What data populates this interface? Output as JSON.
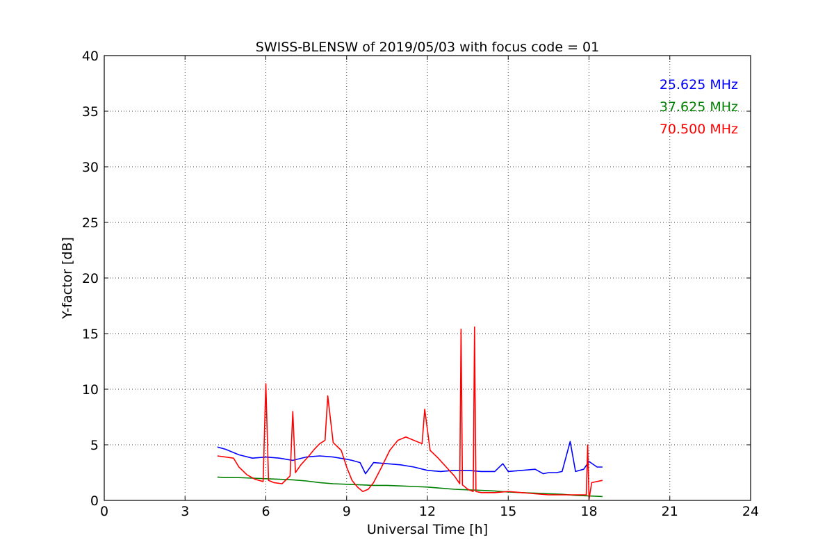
{
  "chart_data": {
    "type": "line",
    "title": "SWISS-BLENSW of 2019/05/03 with focus code = 01",
    "xlabel": "Universal Time [h]",
    "ylabel": "Y-factor [dB]",
    "xlim": [
      0,
      24
    ],
    "ylim": [
      0,
      40
    ],
    "xticks": [
      0,
      3,
      6,
      9,
      12,
      15,
      18,
      21,
      24
    ],
    "xtick_labels": [
      "0",
      "3",
      "6",
      "9",
      "12",
      "15",
      "18",
      "21",
      "24"
    ],
    "yticks": [
      0,
      5,
      10,
      15,
      20,
      25,
      30,
      35,
      40
    ],
    "ytick_labels": [
      "0",
      "5",
      "10",
      "15",
      "20",
      "25",
      "30",
      "35",
      "40"
    ],
    "grid": true,
    "legend_position": "top-right",
    "series": [
      {
        "name": "25.625 MHz",
        "color": "#0000ff",
        "x": [
          4.2,
          4.5,
          5.0,
          5.5,
          6.0,
          6.5,
          7.0,
          7.5,
          8.0,
          8.5,
          9.0,
          9.2,
          9.5,
          9.7,
          10.0,
          10.5,
          11.0,
          11.5,
          12.0,
          12.5,
          13.0,
          13.5,
          14.0,
          14.5,
          14.8,
          15.0,
          15.5,
          16.0,
          16.3,
          16.5,
          16.8,
          17.0,
          17.3,
          17.5,
          17.8,
          18.0,
          18.3,
          18.5
        ],
        "y": [
          4.8,
          4.6,
          4.1,
          3.8,
          3.9,
          3.8,
          3.6,
          3.9,
          4.0,
          3.9,
          3.7,
          3.6,
          3.4,
          2.4,
          3.4,
          3.3,
          3.2,
          3.0,
          2.7,
          2.6,
          2.7,
          2.7,
          2.6,
          2.6,
          3.3,
          2.6,
          2.7,
          2.8,
          2.4,
          2.5,
          2.5,
          2.6,
          5.3,
          2.6,
          2.8,
          3.5,
          3.0,
          3.0
        ]
      },
      {
        "name": "37.625 MHz",
        "color": "#008000",
        "x": [
          4.2,
          4.5,
          5.0,
          5.5,
          6.0,
          6.5,
          7.0,
          7.5,
          8.0,
          8.5,
          9.0,
          9.5,
          10.0,
          10.5,
          11.0,
          11.5,
          12.0,
          12.5,
          13.0,
          13.5,
          14.0,
          14.5,
          15.0,
          15.5,
          16.0,
          16.5,
          17.0,
          17.5,
          18.0,
          18.5
        ],
        "y": [
          2.1,
          2.05,
          2.05,
          2.0,
          1.95,
          1.9,
          1.85,
          1.75,
          1.6,
          1.5,
          1.45,
          1.4,
          1.35,
          1.35,
          1.3,
          1.25,
          1.2,
          1.1,
          1.0,
          0.95,
          0.9,
          0.85,
          0.75,
          0.7,
          0.65,
          0.6,
          0.55,
          0.45,
          0.4,
          0.35
        ]
      },
      {
        "name": "70.500 MHz",
        "color": "#ff0000",
        "x": [
          4.2,
          4.5,
          4.8,
          5.0,
          5.3,
          5.6,
          5.9,
          6.0,
          6.1,
          6.3,
          6.6,
          6.9,
          7.0,
          7.1,
          7.3,
          7.6,
          7.8,
          8.0,
          8.2,
          8.3,
          8.5,
          8.8,
          9.0,
          9.2,
          9.4,
          9.6,
          9.8,
          10.0,
          10.3,
          10.6,
          10.9,
          11.2,
          11.5,
          11.8,
          11.9,
          12.1,
          12.4,
          12.7,
          13.0,
          13.2,
          13.25,
          13.3,
          13.5,
          13.7,
          13.75,
          13.8,
          14.0,
          14.5,
          15.0,
          15.5,
          16.0,
          16.5,
          17.0,
          17.5,
          17.9,
          17.95,
          18.0,
          18.1,
          18.3,
          18.5
        ],
        "y": [
          4.0,
          3.9,
          3.8,
          3.0,
          2.3,
          1.9,
          1.7,
          10.5,
          1.8,
          1.6,
          1.5,
          2.2,
          8.0,
          2.5,
          3.2,
          4.0,
          4.6,
          5.1,
          5.4,
          9.4,
          5.2,
          4.5,
          3.0,
          1.8,
          1.2,
          0.8,
          1.0,
          1.6,
          3.0,
          4.5,
          5.4,
          5.7,
          5.4,
          5.1,
          8.2,
          4.5,
          3.8,
          3.0,
          2.2,
          1.5,
          15.4,
          1.4,
          1.0,
          0.8,
          15.6,
          0.8,
          0.7,
          0.7,
          0.8,
          0.7,
          0.6,
          0.5,
          0.5,
          0.5,
          0.5,
          5.0,
          0.1,
          1.6,
          1.7,
          1.8
        ]
      }
    ]
  }
}
